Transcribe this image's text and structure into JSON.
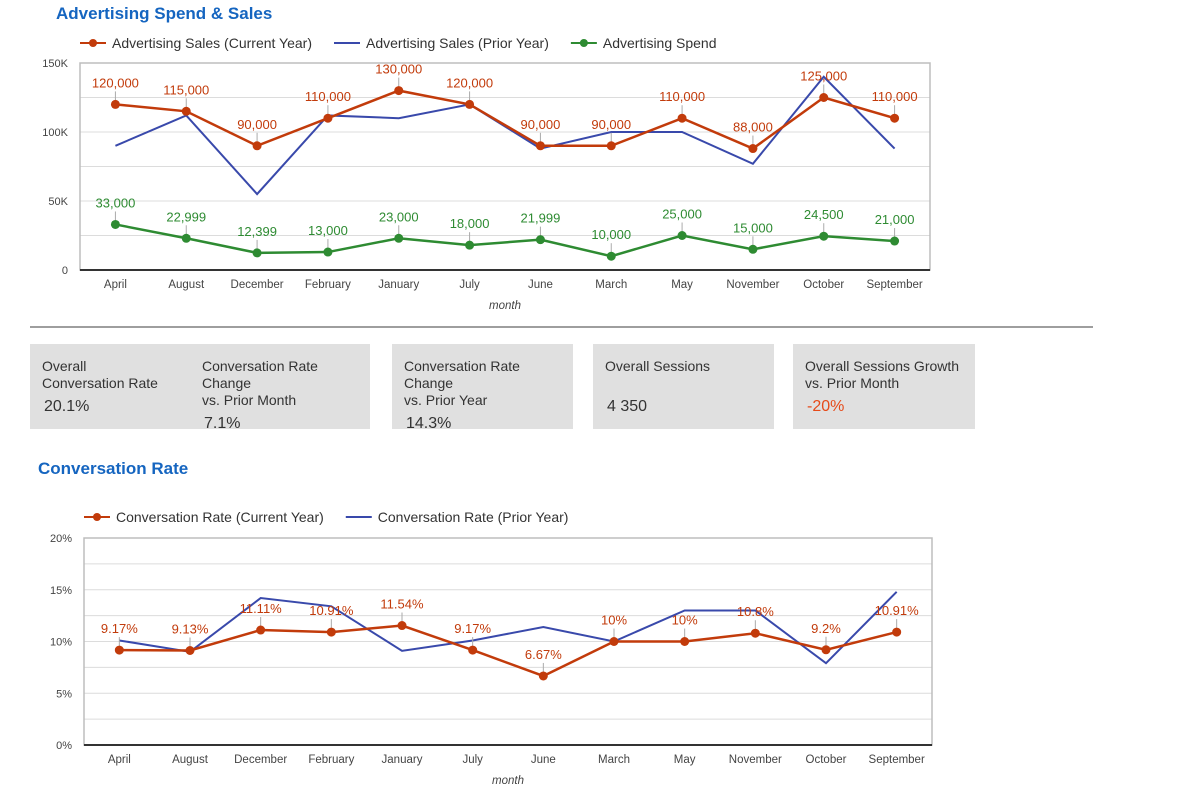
{
  "chart_data": [
    {
      "type": "line",
      "title": "Advertising Spend & Sales",
      "xlabel": "month",
      "ylabel": "",
      "ylim": [
        0,
        150000
      ],
      "yticks": [
        "0",
        "50K",
        "100K",
        "150K"
      ],
      "grid": true,
      "legend": "top",
      "categories": [
        "April",
        "August",
        "December",
        "February",
        "January",
        "July",
        "June",
        "March",
        "May",
        "November",
        "October",
        "September"
      ],
      "series": [
        {
          "name": "Advertising Sales (Current Year)",
          "color": "#c23b0b",
          "markers": true,
          "labels": true,
          "values": [
            120000,
            115000,
            90000,
            110000,
            130000,
            120000,
            90000,
            90000,
            110000,
            88000,
            125000,
            110000
          ],
          "value_labels": [
            "120,000",
            "115,000",
            "90,000",
            "110,000",
            "130,000",
            "120,000",
            "90,000",
            "90,000",
            "110,000",
            "88,000",
            "125,000",
            "110,000"
          ]
        },
        {
          "name": "Advertising Sales (Prior Year)",
          "color": "#3949ab",
          "markers": false,
          "labels": false,
          "values": [
            90000,
            112000,
            55000,
            112000,
            110000,
            120000,
            88000,
            100000,
            100000,
            77000,
            140000,
            88000
          ]
        },
        {
          "name": "Advertising Spend",
          "color": "#2e8b32",
          "markers": true,
          "labels": true,
          "values": [
            33000,
            22999,
            12399,
            13000,
            23000,
            18000,
            21999,
            10000,
            25000,
            15000,
            24500,
            21000
          ],
          "value_labels": [
            "33,000",
            "22,999",
            "12,399",
            "13,000",
            "23,000",
            "18,000",
            "21,999",
            "10,000",
            "25,000",
            "15,000",
            "24,500",
            "21,000"
          ]
        }
      ]
    },
    {
      "type": "line",
      "title": "Conversation Rate",
      "xlabel": "month",
      "ylabel": "",
      "ylim": [
        0,
        20
      ],
      "yticks": [
        "0%",
        "5%",
        "10%",
        "15%",
        "20%"
      ],
      "grid": true,
      "legend": "top",
      "categories": [
        "April",
        "August",
        "December",
        "February",
        "January",
        "July",
        "June",
        "March",
        "May",
        "November",
        "October",
        "September"
      ],
      "series": [
        {
          "name": "Conversation Rate (Current Year)",
          "color": "#c23b0b",
          "markers": true,
          "labels": true,
          "values": [
            9.17,
            9.13,
            11.11,
            10.91,
            11.54,
            9.17,
            6.67,
            10,
            10,
            10.8,
            9.2,
            10.91
          ],
          "value_labels": [
            "9.17%",
            "9.13%",
            "11.11%",
            "10.91%",
            "11.54%",
            "9.17%",
            "6.67%",
            "10%",
            "10%",
            "10.8%",
            "9.2%",
            "10.91%"
          ]
        },
        {
          "name": "Conversation Rate (Prior Year)",
          "color": "#3949ab",
          "markers": false,
          "labels": false,
          "values": [
            10.1,
            9.0,
            14.2,
            13.4,
            9.1,
            10.1,
            11.4,
            10.0,
            13.0,
            13.0,
            7.9,
            14.8
          ]
        }
      ]
    }
  ],
  "kpis": [
    {
      "label": "Overall\nConversation Rate",
      "value": "20.1%"
    },
    {
      "label": "Conversation Rate Change\nvs. Prior Month",
      "value": "7.1%"
    },
    {
      "label": "Conversation Rate Change\nvs. Prior Year",
      "value": "14.3%"
    },
    {
      "label": "Overall Sessions",
      "value": "4 350"
    },
    {
      "label": "Overall Sessions Growth\nvs. Prior Month",
      "value": "-20%",
      "color": "#e64a19"
    }
  ]
}
